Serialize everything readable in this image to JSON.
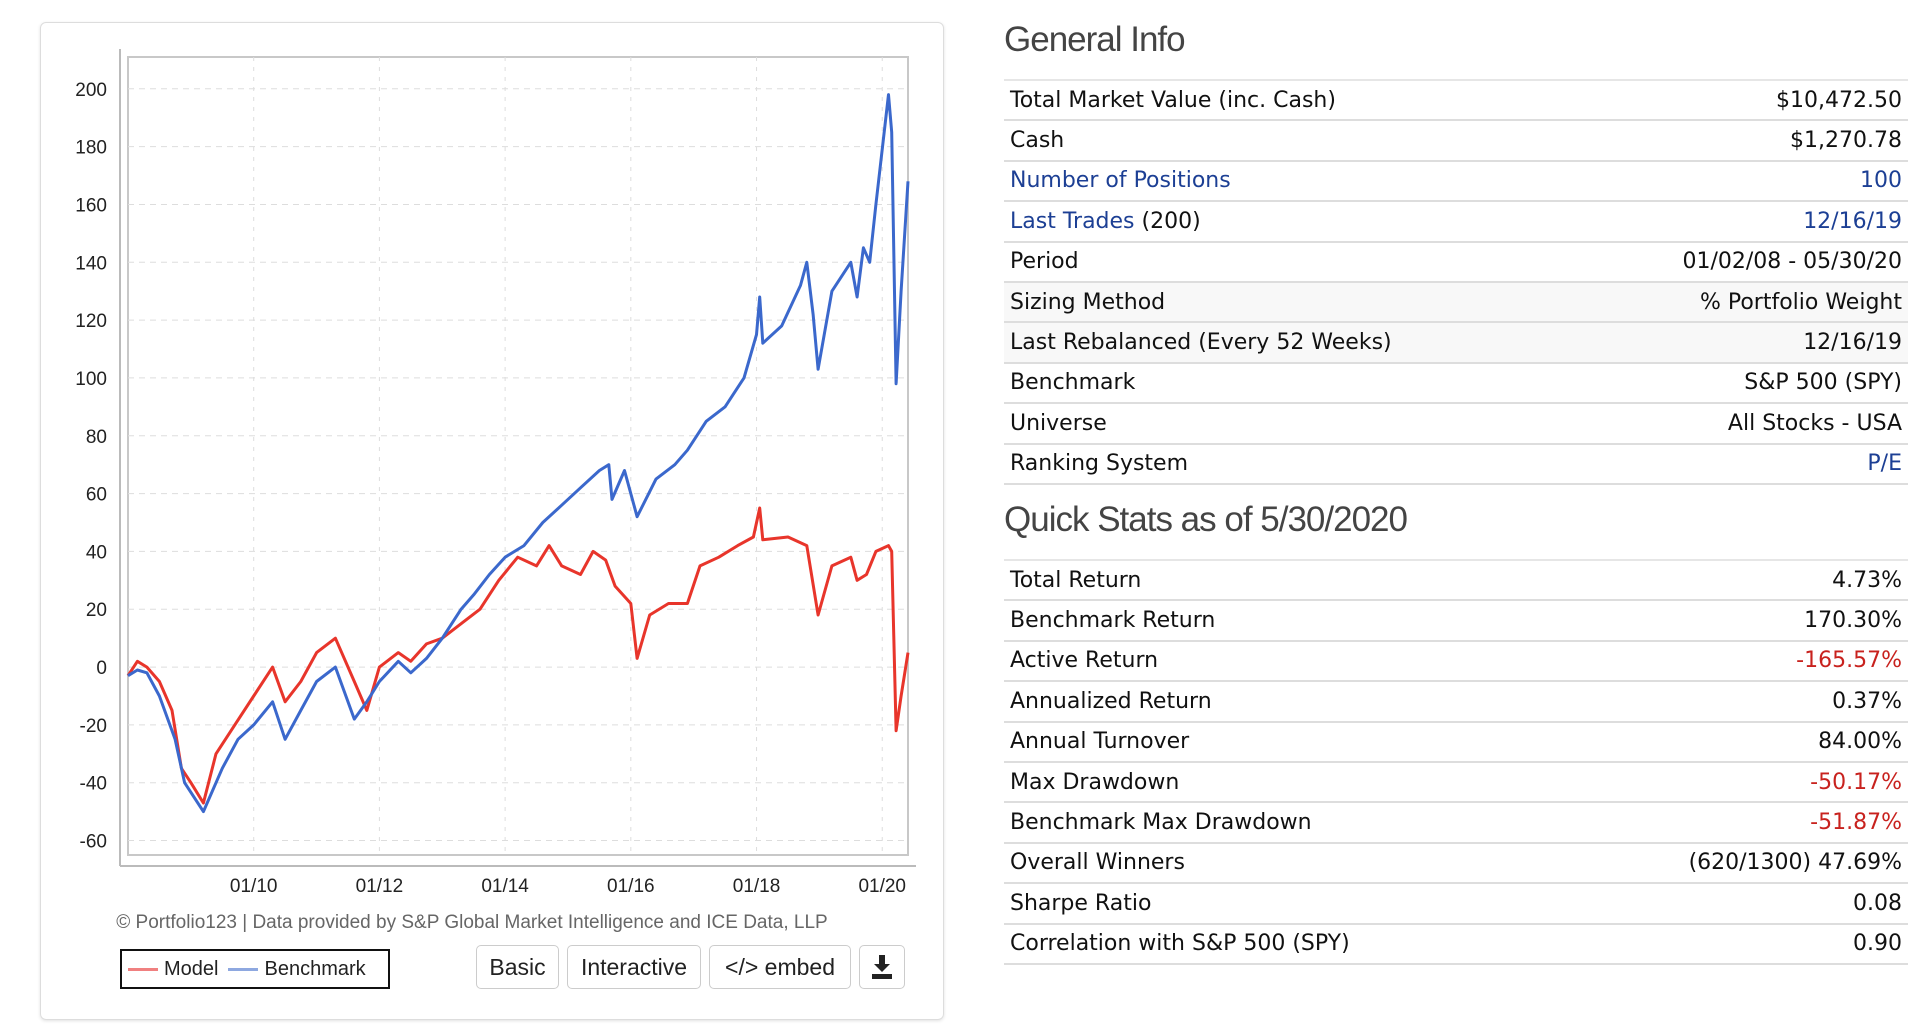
{
  "chart_data": {
    "type": "line",
    "title": "",
    "xlabel": "",
    "ylabel": "",
    "x_ticks": [
      "01/10",
      "01/12",
      "01/14",
      "01/16",
      "01/18",
      "01/20"
    ],
    "x_tick_years": [
      2010,
      2012,
      2014,
      2016,
      2018,
      2020
    ],
    "y_ticks": [
      200,
      180,
      160,
      140,
      120,
      100,
      80,
      60,
      40,
      20,
      0,
      -20,
      -40,
      -60
    ],
    "xlim": [
      2008.0,
      2020.41
    ],
    "ylim": [
      -65,
      211
    ],
    "grid": true,
    "legend": {
      "placement": "bottom-left",
      "entries": [
        "Model",
        "Benchmark"
      ]
    },
    "series": [
      {
        "name": "Model",
        "color": "#e8352b",
        "points": [
          [
            2008.0,
            -3
          ],
          [
            2008.15,
            2
          ],
          [
            2008.3,
            0
          ],
          [
            2008.5,
            -5
          ],
          [
            2008.7,
            -15
          ],
          [
            2008.85,
            -35
          ],
          [
            2009.0,
            -40
          ],
          [
            2009.2,
            -47
          ],
          [
            2009.4,
            -30
          ],
          [
            2009.7,
            -20
          ],
          [
            2010.0,
            -10
          ],
          [
            2010.3,
            0
          ],
          [
            2010.5,
            -12
          ],
          [
            2010.75,
            -5
          ],
          [
            2011.0,
            5
          ],
          [
            2011.3,
            10
          ],
          [
            2011.6,
            -5
          ],
          [
            2011.8,
            -15
          ],
          [
            2012.0,
            0
          ],
          [
            2012.3,
            5
          ],
          [
            2012.5,
            2
          ],
          [
            2012.75,
            8
          ],
          [
            2013.0,
            10
          ],
          [
            2013.3,
            15
          ],
          [
            2013.6,
            20
          ],
          [
            2013.9,
            30
          ],
          [
            2014.2,
            38
          ],
          [
            2014.5,
            35
          ],
          [
            2014.7,
            42
          ],
          [
            2014.9,
            35
          ],
          [
            2015.2,
            32
          ],
          [
            2015.4,
            40
          ],
          [
            2015.6,
            37
          ],
          [
            2015.75,
            28
          ],
          [
            2016.0,
            22
          ],
          [
            2016.1,
            3
          ],
          [
            2016.3,
            18
          ],
          [
            2016.6,
            22
          ],
          [
            2016.9,
            22
          ],
          [
            2017.1,
            35
          ],
          [
            2017.4,
            38
          ],
          [
            2017.7,
            42
          ],
          [
            2017.95,
            45
          ],
          [
            2018.05,
            55
          ],
          [
            2018.1,
            44
          ],
          [
            2018.5,
            45
          ],
          [
            2018.8,
            42
          ],
          [
            2018.98,
            18
          ],
          [
            2019.2,
            35
          ],
          [
            2019.5,
            38
          ],
          [
            2019.6,
            30
          ],
          [
            2019.75,
            32
          ],
          [
            2019.9,
            40
          ],
          [
            2020.1,
            42
          ],
          [
            2020.15,
            40
          ],
          [
            2020.22,
            -22
          ],
          [
            2020.3,
            -10
          ],
          [
            2020.41,
            5
          ]
        ]
      },
      {
        "name": "Benchmark",
        "color": "#3b68cc",
        "points": [
          [
            2008.0,
            -3
          ],
          [
            2008.15,
            -1
          ],
          [
            2008.3,
            -2
          ],
          [
            2008.5,
            -10
          ],
          [
            2008.75,
            -25
          ],
          [
            2008.9,
            -40
          ],
          [
            2009.2,
            -50
          ],
          [
            2009.5,
            -35
          ],
          [
            2009.75,
            -25
          ],
          [
            2010.0,
            -20
          ],
          [
            2010.3,
            -12
          ],
          [
            2010.5,
            -25
          ],
          [
            2010.75,
            -15
          ],
          [
            2011.0,
            -5
          ],
          [
            2011.3,
            0
          ],
          [
            2011.6,
            -18
          ],
          [
            2011.8,
            -12
          ],
          [
            2012.0,
            -5
          ],
          [
            2012.3,
            2
          ],
          [
            2012.5,
            -2
          ],
          [
            2012.75,
            3
          ],
          [
            2013.0,
            10
          ],
          [
            2013.3,
            20
          ],
          [
            2013.5,
            25
          ],
          [
            2013.75,
            32
          ],
          [
            2014.0,
            38
          ],
          [
            2014.3,
            42
          ],
          [
            2014.6,
            50
          ],
          [
            2014.9,
            56
          ],
          [
            2015.2,
            62
          ],
          [
            2015.5,
            68
          ],
          [
            2015.65,
            70
          ],
          [
            2015.7,
            58
          ],
          [
            2015.9,
            68
          ],
          [
            2016.1,
            52
          ],
          [
            2016.4,
            65
          ],
          [
            2016.7,
            70
          ],
          [
            2016.9,
            75
          ],
          [
            2017.2,
            85
          ],
          [
            2017.5,
            90
          ],
          [
            2017.8,
            100
          ],
          [
            2018.0,
            115
          ],
          [
            2018.05,
            128
          ],
          [
            2018.1,
            112
          ],
          [
            2018.4,
            118
          ],
          [
            2018.7,
            132
          ],
          [
            2018.8,
            140
          ],
          [
            2018.9,
            122
          ],
          [
            2018.98,
            103
          ],
          [
            2019.2,
            130
          ],
          [
            2019.5,
            140
          ],
          [
            2019.6,
            128
          ],
          [
            2019.7,
            145
          ],
          [
            2019.8,
            140
          ],
          [
            2019.9,
            160
          ],
          [
            2020.1,
            198
          ],
          [
            2020.15,
            185
          ],
          [
            2020.22,
            98
          ],
          [
            2020.3,
            130
          ],
          [
            2020.41,
            168
          ]
        ]
      }
    ]
  },
  "chart_footer": {
    "credit": "© Portfolio123 | Data provided by S&P Global Market Intelligence and ICE Data, LLP",
    "legend_model": "Model",
    "legend_benchmark": "Benchmark",
    "buttons": {
      "basic": "Basic",
      "interactive": "Interactive",
      "embed": "</> embed"
    },
    "download_icon": "download-icon"
  },
  "general_info": {
    "title": "General Info",
    "rows": [
      {
        "label": "Total Market Value (inc. Cash)",
        "value": "$10,472.50"
      },
      {
        "label": "Cash",
        "value": "$1,270.78"
      },
      {
        "label": "Number of Positions",
        "value": "100"
      },
      {
        "label": "Last Trades",
        "label_suffix": "(200)",
        "value": "12/16/19"
      },
      {
        "label": "Period",
        "value": "01/02/08 - 05/30/20"
      },
      {
        "label": "Sizing Method",
        "value": "% Portfolio Weight"
      },
      {
        "label": "Last Rebalanced (Every 52 Weeks)",
        "value": "12/16/19"
      },
      {
        "label": "Benchmark",
        "value": "S&P 500 (SPY)"
      },
      {
        "label": "Universe",
        "value": "All Stocks - USA"
      },
      {
        "label": "Ranking System",
        "value": "P/E"
      }
    ]
  },
  "quick_stats": {
    "title": "Quick Stats as of 5/30/2020",
    "rows": [
      {
        "label": "Total Return",
        "value": "4.73%"
      },
      {
        "label": "Benchmark Return",
        "value": "170.30%"
      },
      {
        "label": "Active Return",
        "value": "-165.57%"
      },
      {
        "label": "Annualized Return",
        "value": "0.37%"
      },
      {
        "label": "Annual Turnover",
        "value": "84.00%"
      },
      {
        "label": "Max Drawdown",
        "value": "-50.17%"
      },
      {
        "label": "Benchmark Max Drawdown",
        "value": "-51.87%"
      },
      {
        "label": "Overall Winners",
        "value": "(620/1300) 47.69%"
      },
      {
        "label": "Sharpe Ratio",
        "value": "0.08"
      },
      {
        "label": "Correlation with S&P 500 (SPY)",
        "value": "0.90"
      }
    ]
  },
  "colors": {
    "link": "#1c3f94",
    "negative": "#c8221e",
    "model": "#e8352b",
    "benchmark": "#3b68cc"
  }
}
